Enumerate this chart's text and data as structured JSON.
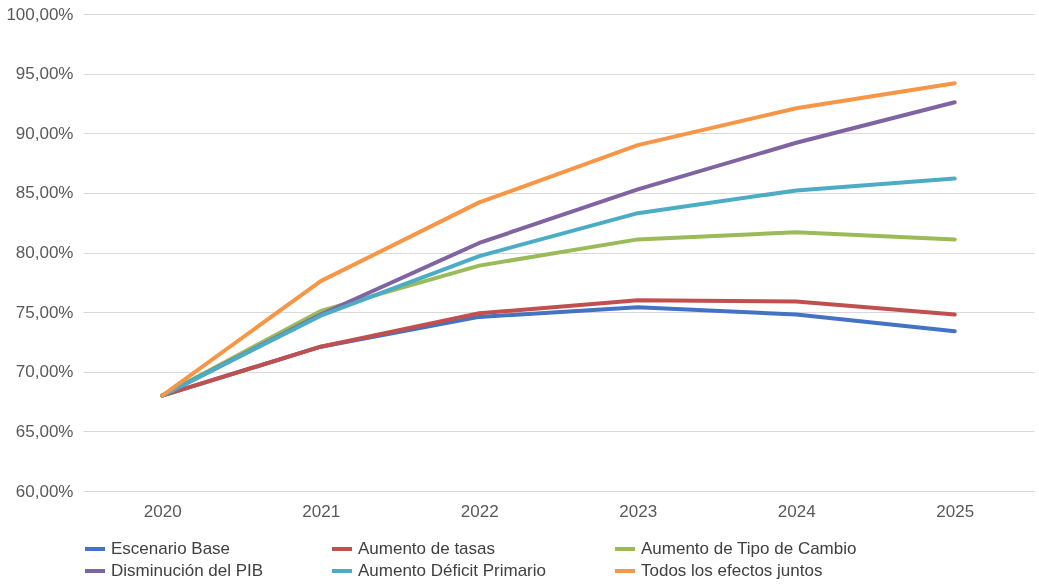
{
  "chart_data": {
    "type": "line",
    "categories": [
      "2020",
      "2021",
      "2022",
      "2023",
      "2024",
      "2025"
    ],
    "series": [
      {
        "name": "Escenario Base",
        "color": "#4472c4",
        "values": [
          68.0,
          72.1,
          74.6,
          75.4,
          74.8,
          73.4
        ]
      },
      {
        "name": "Aumento de tasas",
        "color": "#c0504d",
        "values": [
          68.0,
          72.1,
          74.9,
          76.0,
          75.9,
          74.8
        ]
      },
      {
        "name": "Aumento de Tipo de Cambio",
        "color": "#9bbb59",
        "values": [
          68.0,
          75.1,
          78.9,
          81.1,
          81.7,
          81.1
        ]
      },
      {
        "name": "Disminución del PIB",
        "color": "#8064a2",
        "values": [
          68.0,
          74.8,
          80.8,
          85.3,
          89.2,
          92.6
        ]
      },
      {
        "name": "Aumento Déficit Primario",
        "color": "#4bacc6",
        "values": [
          68.0,
          74.7,
          79.7,
          83.3,
          85.2,
          86.2
        ]
      },
      {
        "name": "Todos los efectos juntos",
        "color": "#f79646",
        "values": [
          68.0,
          77.6,
          84.2,
          89.0,
          92.1,
          94.2
        ]
      }
    ],
    "ylim": [
      60,
      100
    ],
    "yticks": [
      {
        "value": 60,
        "label": "60,00%"
      },
      {
        "value": 65,
        "label": "65,00%"
      },
      {
        "value": 70,
        "label": "70,00%"
      },
      {
        "value": 75,
        "label": "75,00%"
      },
      {
        "value": 80,
        "label": "80,00%"
      },
      {
        "value": 85,
        "label": "85,00%"
      },
      {
        "value": 90,
        "label": "90,00%"
      },
      {
        "value": 95,
        "label": "95,00%"
      },
      {
        "value": 100,
        "label": "100,00%"
      }
    ],
    "grid": "y",
    "legend": "bottom",
    "marker": "none",
    "line_style": "solid"
  }
}
